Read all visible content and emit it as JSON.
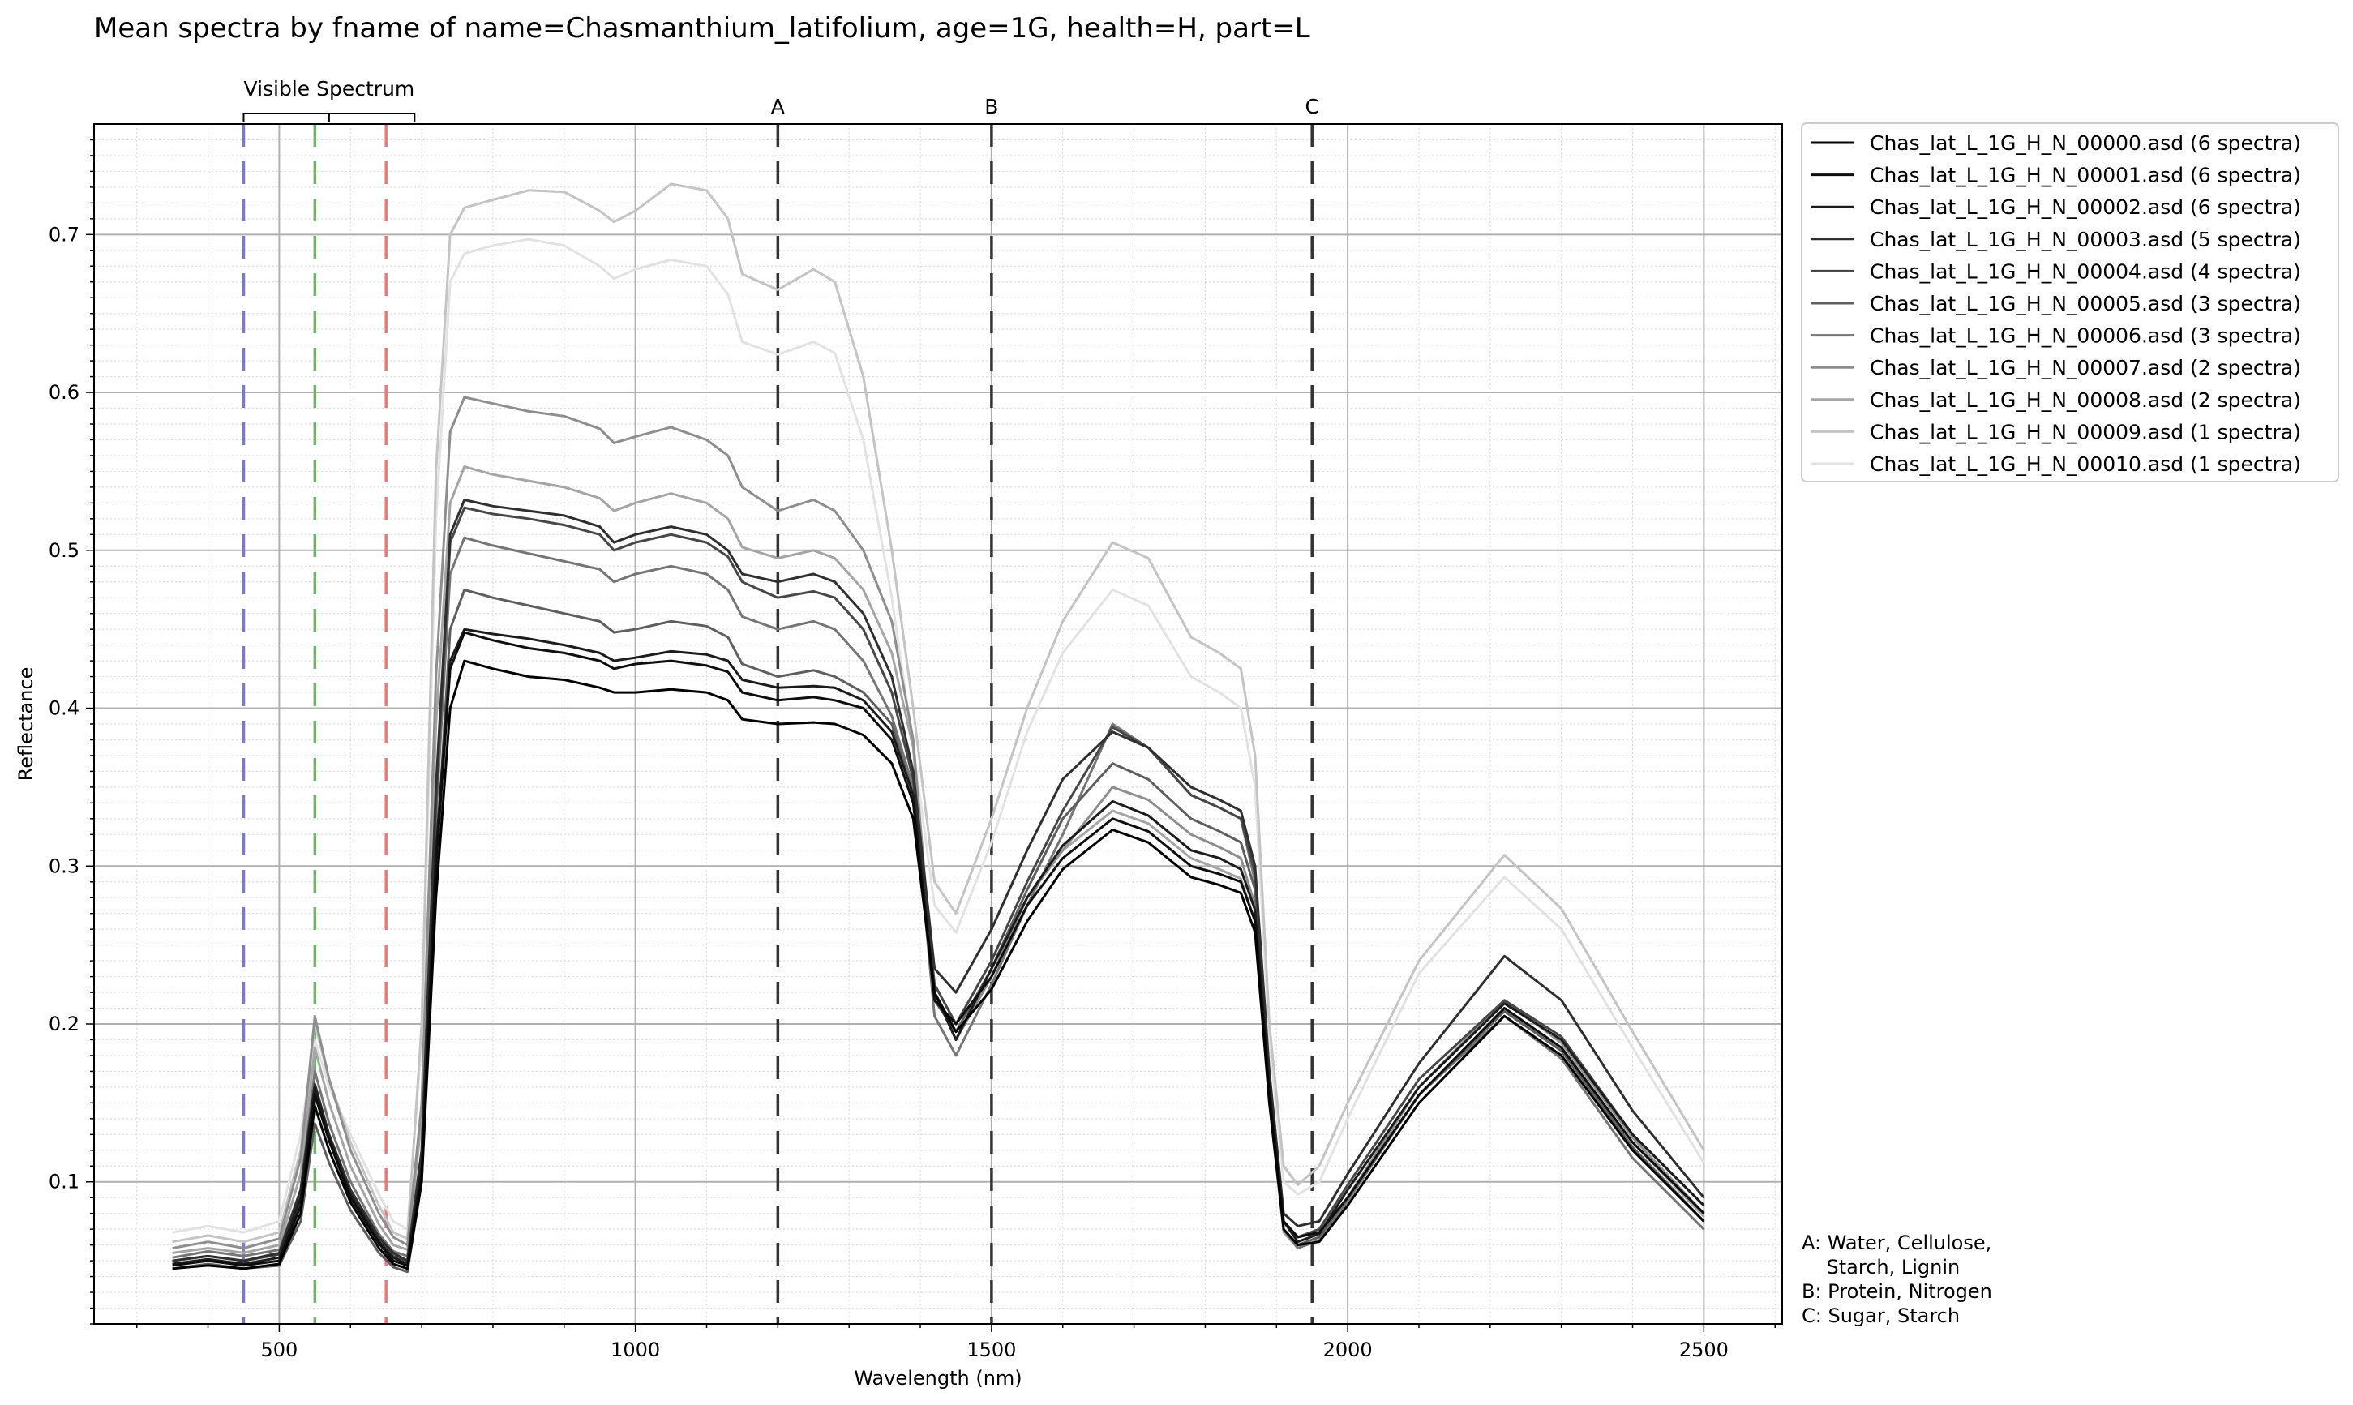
{
  "chart_data": {
    "type": "line",
    "title": "Mean spectra by fname of name=Chasmanthium_latifolium, age=1G, health=H, part=L",
    "xlabel": "Wavelength (nm)",
    "ylabel": "Reflectance",
    "xlim": [
      240,
      2610
    ],
    "ylim": [
      0.01,
      0.77
    ],
    "x_ticks": [
      500,
      1000,
      1500,
      2000,
      2500
    ],
    "y_ticks": [
      0.1,
      0.2,
      0.3,
      0.4,
      0.5,
      0.6,
      0.7
    ],
    "grid": true,
    "legend_position": "outside-right-top",
    "visible_spectrum": {
      "label": "Visible Spectrum",
      "range": [
        450,
        690
      ],
      "lines": [
        {
          "x": 450,
          "color": "#7777dd"
        },
        {
          "x": 550,
          "color": "#66bb66"
        },
        {
          "x": 650,
          "color": "#ee7777"
        }
      ]
    },
    "markers": [
      {
        "label": "A",
        "x": 1200
      },
      {
        "label": "B",
        "x": 1500
      },
      {
        "label": "C",
        "x": 1950
      }
    ],
    "annotation_lines": [
      "A: Water, Cellulose,",
      "    Starch, Lignin",
      "B: Protein, Nitrogen",
      "C: Sugar, Starch"
    ],
    "x": [
      350,
      400,
      450,
      500,
      530,
      550,
      570,
      600,
      640,
      660,
      680,
      700,
      720,
      740,
      760,
      800,
      850,
      900,
      950,
      970,
      1000,
      1050,
      1100,
      1130,
      1150,
      1200,
      1250,
      1280,
      1320,
      1360,
      1390,
      1420,
      1450,
      1500,
      1550,
      1600,
      1670,
      1720,
      1780,
      1820,
      1850,
      1870,
      1890,
      1910,
      1930,
      1960,
      2000,
      2100,
      2220,
      2300,
      2400,
      2500
    ],
    "series": [
      {
        "name": "Chas_lat_L_1G_H_N_00000.asd (6 spectra)",
        "color": "#000000",
        "values": [
          0.045,
          0.047,
          0.045,
          0.048,
          0.08,
          0.148,
          0.12,
          0.087,
          0.058,
          0.048,
          0.045,
          0.1,
          0.28,
          0.4,
          0.43,
          0.425,
          0.42,
          0.418,
          0.413,
          0.41,
          0.41,
          0.412,
          0.41,
          0.405,
          0.393,
          0.39,
          0.391,
          0.39,
          0.383,
          0.365,
          0.33,
          0.22,
          0.195,
          0.222,
          0.265,
          0.298,
          0.323,
          0.315,
          0.293,
          0.288,
          0.283,
          0.258,
          0.15,
          0.07,
          0.06,
          0.062,
          0.085,
          0.15,
          0.205,
          0.18,
          0.12,
          0.075
        ]
      },
      {
        "name": "Chas_lat_L_1G_H_N_00001.asd (6 spectra)",
        "color": "#0e0e0e",
        "values": [
          0.047,
          0.05,
          0.047,
          0.05,
          0.085,
          0.155,
          0.126,
          0.09,
          0.061,
          0.05,
          0.047,
          0.105,
          0.3,
          0.425,
          0.448,
          0.443,
          0.438,
          0.435,
          0.43,
          0.425,
          0.428,
          0.43,
          0.427,
          0.423,
          0.41,
          0.405,
          0.407,
          0.405,
          0.4,
          0.38,
          0.34,
          0.215,
          0.2,
          0.23,
          0.275,
          0.305,
          0.33,
          0.322,
          0.3,
          0.295,
          0.29,
          0.265,
          0.155,
          0.075,
          0.065,
          0.068,
          0.09,
          0.155,
          0.21,
          0.185,
          0.125,
          0.08
        ]
      },
      {
        "name": "Chas_lat_L_1G_H_N_00002.asd (6 spectra)",
        "color": "#1c1c1c",
        "values": [
          0.048,
          0.051,
          0.048,
          0.052,
          0.09,
          0.16,
          0.128,
          0.092,
          0.062,
          0.052,
          0.048,
          0.11,
          0.31,
          0.43,
          0.45,
          0.447,
          0.444,
          0.44,
          0.435,
          0.43,
          0.432,
          0.436,
          0.434,
          0.43,
          0.418,
          0.413,
          0.414,
          0.413,
          0.405,
          0.385,
          0.345,
          0.22,
          0.19,
          0.235,
          0.28,
          0.313,
          0.341,
          0.332,
          0.31,
          0.305,
          0.298,
          0.272,
          0.16,
          0.075,
          0.062,
          0.067,
          0.095,
          0.16,
          0.213,
          0.19,
          0.13,
          0.085
        ]
      },
      {
        "name": "Chas_lat_L_1G_H_N_00003.asd (5 spectra)",
        "color": "#2f2f2f",
        "values": [
          0.05,
          0.053,
          0.05,
          0.055,
          0.095,
          0.162,
          0.13,
          0.095,
          0.065,
          0.055,
          0.05,
          0.12,
          0.35,
          0.51,
          0.532,
          0.528,
          0.525,
          0.522,
          0.515,
          0.505,
          0.51,
          0.515,
          0.51,
          0.5,
          0.485,
          0.48,
          0.485,
          0.48,
          0.46,
          0.42,
          0.36,
          0.235,
          0.22,
          0.26,
          0.31,
          0.355,
          0.385,
          0.375,
          0.35,
          0.342,
          0.335,
          0.3,
          0.17,
          0.08,
          0.072,
          0.075,
          0.105,
          0.175,
          0.243,
          0.215,
          0.145,
          0.09
        ]
      },
      {
        "name": "Chas_lat_L_1G_H_N_00004.asd (4 spectra)",
        "color": "#474747",
        "values": [
          0.05,
          0.053,
          0.05,
          0.054,
          0.09,
          0.158,
          0.128,
          0.093,
          0.063,
          0.053,
          0.05,
          0.115,
          0.34,
          0.505,
          0.527,
          0.523,
          0.52,
          0.516,
          0.51,
          0.5,
          0.505,
          0.51,
          0.505,
          0.496,
          0.48,
          0.47,
          0.474,
          0.47,
          0.45,
          0.41,
          0.355,
          0.225,
          0.2,
          0.24,
          0.29,
          0.335,
          0.388,
          0.375,
          0.345,
          0.337,
          0.33,
          0.295,
          0.165,
          0.075,
          0.065,
          0.07,
          0.098,
          0.165,
          0.215,
          0.192,
          0.13,
          0.085
        ]
      },
      {
        "name": "Chas_lat_L_1G_H_N_00005.asd (3 spectra)",
        "color": "#5e5e5e",
        "values": [
          0.045,
          0.048,
          0.045,
          0.047,
          0.075,
          0.137,
          0.112,
          0.082,
          0.055,
          0.046,
          0.043,
          0.1,
          0.3,
          0.45,
          0.475,
          0.47,
          0.465,
          0.46,
          0.455,
          0.448,
          0.45,
          0.455,
          0.452,
          0.445,
          0.428,
          0.42,
          0.424,
          0.42,
          0.41,
          0.39,
          0.345,
          0.215,
          0.195,
          0.235,
          0.285,
          0.33,
          0.365,
          0.355,
          0.33,
          0.322,
          0.315,
          0.285,
          0.16,
          0.07,
          0.06,
          0.065,
          0.09,
          0.155,
          0.208,
          0.183,
          0.122,
          0.075
        ]
      },
      {
        "name": "Chas_lat_L_1G_H_N_00006.asd (3 spectra)",
        "color": "#757575",
        "values": [
          0.052,
          0.056,
          0.053,
          0.057,
          0.095,
          0.17,
          0.137,
          0.1,
          0.067,
          0.056,
          0.053,
          0.12,
          0.33,
          0.485,
          0.508,
          0.503,
          0.498,
          0.493,
          0.488,
          0.48,
          0.485,
          0.49,
          0.485,
          0.475,
          0.458,
          0.45,
          0.455,
          0.45,
          0.43,
          0.395,
          0.35,
          0.205,
          0.18,
          0.225,
          0.275,
          0.32,
          0.39,
          0.375,
          0.345,
          0.337,
          0.33,
          0.29,
          0.16,
          0.07,
          0.058,
          0.063,
          0.088,
          0.155,
          0.205,
          0.178,
          0.115,
          0.07
        ]
      },
      {
        "name": "Chas_lat_L_1G_H_N_00007.asd (2 spectra)",
        "color": "#8e8e8e",
        "values": [
          0.058,
          0.062,
          0.058,
          0.064,
          0.115,
          0.205,
          0.165,
          0.12,
          0.08,
          0.065,
          0.06,
          0.15,
          0.42,
          0.575,
          0.597,
          0.593,
          0.588,
          0.585,
          0.577,
          0.568,
          0.572,
          0.578,
          0.57,
          0.56,
          0.54,
          0.525,
          0.532,
          0.525,
          0.5,
          0.455,
          0.38,
          0.22,
          0.19,
          0.23,
          0.28,
          0.31,
          0.35,
          0.342,
          0.32,
          0.312,
          0.305,
          0.275,
          0.155,
          0.07,
          0.06,
          0.065,
          0.09,
          0.16,
          0.215,
          0.188,
          0.128,
          0.08
        ]
      },
      {
        "name": "Chas_lat_L_1G_H_N_00008.asd (2 spectra)",
        "color": "#a5a5a5",
        "values": [
          0.055,
          0.058,
          0.055,
          0.06,
          0.105,
          0.185,
          0.15,
          0.11,
          0.073,
          0.06,
          0.057,
          0.14,
          0.39,
          0.53,
          0.553,
          0.548,
          0.544,
          0.54,
          0.533,
          0.525,
          0.53,
          0.536,
          0.53,
          0.52,
          0.502,
          0.495,
          0.5,
          0.495,
          0.475,
          0.435,
          0.375,
          0.22,
          0.19,
          0.23,
          0.28,
          0.31,
          0.335,
          0.327,
          0.305,
          0.298,
          0.292,
          0.265,
          0.15,
          0.068,
          0.058,
          0.063,
          0.088,
          0.155,
          0.21,
          0.185,
          0.125,
          0.078
        ]
      },
      {
        "name": "Chas_lat_L_1G_H_N_00009.asd (1 spectra)",
        "color": "#c4c4c4",
        "values": [
          0.062,
          0.066,
          0.062,
          0.068,
          0.12,
          0.2,
          0.165,
          0.125,
          0.085,
          0.068,
          0.064,
          0.2,
          0.55,
          0.7,
          0.717,
          0.722,
          0.728,
          0.727,
          0.715,
          0.708,
          0.715,
          0.732,
          0.728,
          0.71,
          0.675,
          0.665,
          0.678,
          0.67,
          0.61,
          0.5,
          0.4,
          0.29,
          0.27,
          0.33,
          0.4,
          0.455,
          0.505,
          0.495,
          0.445,
          0.435,
          0.425,
          0.37,
          0.2,
          0.11,
          0.098,
          0.11,
          0.15,
          0.24,
          0.307,
          0.273,
          0.195,
          0.12
        ]
      },
      {
        "name": "Chas_lat_L_1G_H_N_00010.asd (1 spectra)",
        "color": "#e2e2e2",
        "values": [
          0.068,
          0.072,
          0.068,
          0.075,
          0.13,
          0.19,
          0.16,
          0.13,
          0.092,
          0.075,
          0.07,
          0.19,
          0.52,
          0.67,
          0.688,
          0.693,
          0.697,
          0.693,
          0.68,
          0.672,
          0.678,
          0.684,
          0.68,
          0.662,
          0.632,
          0.624,
          0.632,
          0.625,
          0.57,
          0.47,
          0.375,
          0.275,
          0.258,
          0.315,
          0.385,
          0.435,
          0.475,
          0.465,
          0.42,
          0.41,
          0.4,
          0.35,
          0.19,
          0.1,
          0.092,
          0.1,
          0.14,
          0.232,
          0.293,
          0.26,
          0.185,
          0.112
        ]
      }
    ]
  }
}
